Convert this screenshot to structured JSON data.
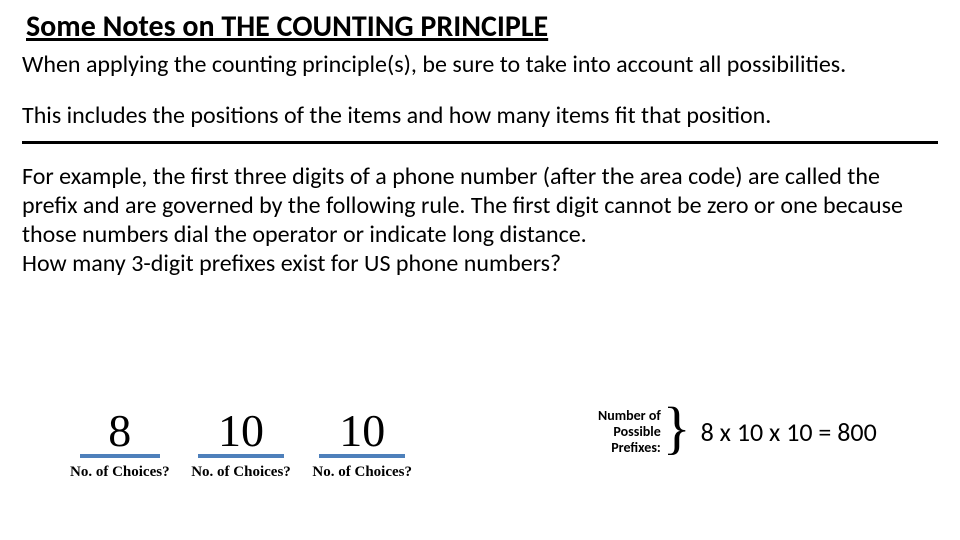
{
  "title": "Some Notes on THE COUNTING PRINCIPLE",
  "para1": "When applying the counting principle(s), be sure to take into account all possibilities.",
  "para2": "This includes the positions of the items and how many items fit that position.",
  "para3": "For example, the first three digits of a phone number (after the area code) are called the prefix and are governed by the following rule. The first digit cannot be zero or one because those numbers dial the operator or indicate long distance.",
  "para4": "How many 3-digit prefixes exist for US phone numbers?",
  "slots": {
    "values": [
      "8",
      "10",
      "10"
    ],
    "label": "No. of Choices?",
    "underline_color": "#4e80bb"
  },
  "result": {
    "label_l1": "Number of",
    "label_l2": "Possible",
    "label_l3": "Prefixes:",
    "brace": "}",
    "equation": "8 x 10 x 10 = 800"
  },
  "styling": {
    "title_fontsize": 30,
    "body_fontsize": 24,
    "slot_num_fontsize": 46,
    "slot_num_font": "Times New Roman",
    "slot_label_fontsize": 15,
    "prefix_label_fontsize": 14,
    "equation_fontsize": 26,
    "text_color": "#000000",
    "background_color": "#ffffff"
  }
}
